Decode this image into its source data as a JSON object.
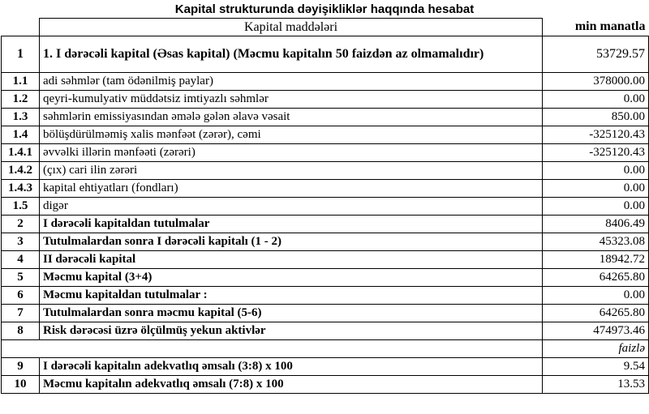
{
  "title": "Kapital strukturunda dəyişikliklər haqqında hesabat",
  "header": {
    "item": "Kapital maddələri",
    "unit": "min manatla"
  },
  "rows": [
    {
      "no": "1",
      "label": "1. I dərəcəli kapital (Əsas kapital) (Məcmu kapitalın 50 faizdən  az olmamalıdır)",
      "value": "53729.57",
      "bold": true
    },
    {
      "no": "1.1",
      "label": "adi səhmlər (tam ödənilmiş paylar)",
      "value": "378000.00"
    },
    {
      "no": "1.2",
      "label": "qeyri-kumulyativ müddətsiz imtiyazlı səhmlər",
      "value": "0.00"
    },
    {
      "no": "1.3",
      "label": "səhmlərin emissiyasından əmələ gələn  əlavə vəsait",
      "value": "850.00"
    },
    {
      "no": "1.4",
      "label": "bölüşdürülməmiş xalis mənfəət (zərər), cəmi",
      "value": "-325120.43"
    },
    {
      "no": "1.4.1",
      "label": "əvvəlki illərin mənfəəti (zərəri)",
      "value": "-325120.43"
    },
    {
      "no": "1.4.2",
      "label": "(çıx) cari ilin zərəri",
      "value": "0.00"
    },
    {
      "no": "1.4.3",
      "label": "kapital ehtiyatları (fondları)",
      "value": "0.00"
    },
    {
      "no": "1.5",
      "label": "digər",
      "value": "0.00"
    },
    {
      "no": "2",
      "label": "I dərəcəli kapitaldan  tutulmalar",
      "value": "8406.49",
      "bold": true
    },
    {
      "no": "3",
      "label": "Tutulmalardan  sonra I dərəcəli kapitalı (1 - 2)",
      "value": "45323.08",
      "bold": true
    },
    {
      "no": "4",
      "label": "II dərəcəli  kapital",
      "value": "18942.72",
      "bold": true
    },
    {
      "no": "5",
      "label": "Məcmu kapital (3+4)",
      "value": "64265.80",
      "bold": true
    },
    {
      "no": "6",
      "label": "Məcmu kapitaldan tutulmalar :",
      "value": "0.00",
      "bold": true
    },
    {
      "no": "7",
      "label": "Tutulmalardan sonra məcmu kapital (5-6)",
      "value": "64265.80",
      "bold": true
    },
    {
      "no": "8",
      "label": "Risk dərəcəsi üzrə ölçülmüş  yekun aktivlər",
      "value": "474973.46",
      "bold": true
    }
  ],
  "percent_unit": "faizlə",
  "ratios": [
    {
      "no": "9",
      "label": "I dərəcəli  kapitalın  adekvatlıq  əmsalı (3:8) x 100",
      "value": "9.54"
    },
    {
      "no": "10",
      "label": "Məcmu kapitalın  adekvatlıq  əmsalı (7:8) x 100",
      "value": "13.53"
    }
  ]
}
